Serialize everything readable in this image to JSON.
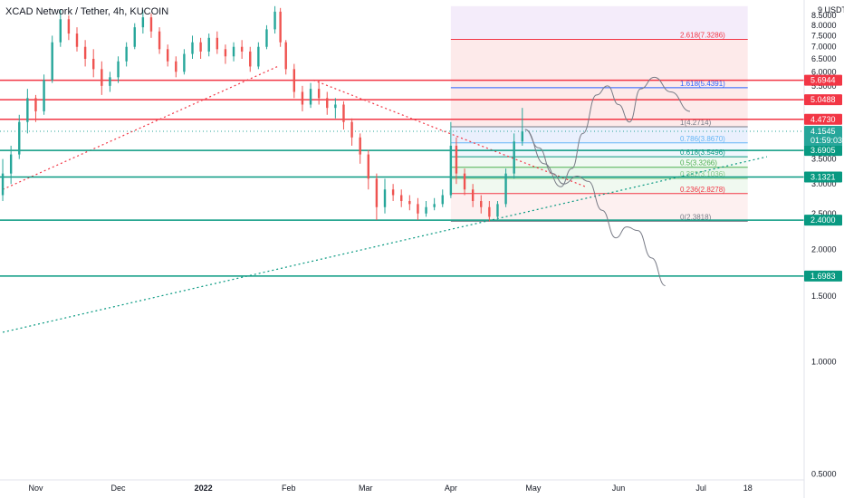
{
  "chart_data": {
    "type": "candlestick",
    "title": "XCAD Network / Tether, 4h, KUCOIN",
    "y_unit_label": "USDT",
    "y_scale": "log",
    "ylim": [
      0.5,
      9
    ],
    "y_ticks": [
      {
        "value": 9.0,
        "label": "9"
      },
      {
        "value": 8.5,
        "label": "8.5000"
      },
      {
        "value": 8.0,
        "label": "8.0000"
      },
      {
        "value": 7.5,
        "label": "7.5000"
      },
      {
        "value": 7.0,
        "label": "7.0000"
      },
      {
        "value": 6.5,
        "label": "6.5000"
      },
      {
        "value": 6.0,
        "label": "6.0000"
      },
      {
        "value": 5.5,
        "label": "5.5000"
      },
      {
        "value": 4.5,
        "label": "4.5000"
      },
      {
        "value": 3.5,
        "label": "3.5000"
      },
      {
        "value": 3.0,
        "label": "3.0000"
      },
      {
        "value": 2.5,
        "label": "2.5000"
      },
      {
        "value": 2.0,
        "label": "2.0000"
      },
      {
        "value": 1.5,
        "label": "1.5000"
      },
      {
        "value": 1.0,
        "label": "1.0000"
      },
      {
        "value": 0.5,
        "label": "0.5000"
      }
    ],
    "x_ticks": [
      {
        "label": "Nov",
        "date": "2021-11-01",
        "bold": false
      },
      {
        "label": "Dec",
        "date": "2021-12-01",
        "bold": false
      },
      {
        "label": "2022",
        "date": "2022-01-01",
        "bold": true
      },
      {
        "label": "Feb",
        "date": "2022-02-01",
        "bold": false
      },
      {
        "label": "Mar",
        "date": "2022-03-01",
        "bold": false
      },
      {
        "label": "Apr",
        "date": "2022-04-01",
        "bold": false
      },
      {
        "label": "May",
        "date": "2022-05-01",
        "bold": false
      },
      {
        "label": "Jun",
        "date": "2022-06-01",
        "bold": false
      },
      {
        "label": "Jul",
        "date": "2022-07-01",
        "bold": false
      },
      {
        "label": "18",
        "date": "2022-07-18",
        "bold": false
      }
    ],
    "current_price": {
      "value": 4.1545,
      "label": "4.1545",
      "countdown": "01:59:03",
      "color": "#26a69a"
    },
    "horizontal_levels": [
      {
        "value": 5.6944,
        "label": "5.6944",
        "color": "#f23645"
      },
      {
        "value": 5.0488,
        "label": "5.0488",
        "color": "#f23645"
      },
      {
        "value": 4.473,
        "label": "4.4730",
        "color": "#f23645"
      },
      {
        "value": 3.6905,
        "label": "3.6905",
        "color": "#089981"
      },
      {
        "value": 3.1321,
        "label": "3.1321",
        "color": "#089981"
      },
      {
        "value": 2.4,
        "label": "2.4000",
        "color": "#089981"
      },
      {
        "value": 1.6983,
        "label": "1.6983",
        "color": "#089981"
      }
    ],
    "fib_extension": {
      "start_date": "2022-04-01",
      "end_date": "2022-07-18",
      "top_value": 9.0,
      "levels": [
        {
          "ratio": "2.618",
          "value": 7.3286,
          "label": "2.618(7.3286)",
          "color": "#f23645"
        },
        {
          "ratio": "1.618",
          "value": 5.4391,
          "label": "1.618(5.4391)",
          "color": "#2962ff"
        },
        {
          "ratio": "1",
          "value": 4.2714,
          "label": "1(4.2714)",
          "color": "#787b86"
        },
        {
          "ratio": "0.786",
          "value": 3.867,
          "label": "0.786(3.8670)",
          "color": "#64b5f6"
        },
        {
          "ratio": "0.618",
          "value": 3.5496,
          "label": "0.618(3.5496)",
          "color": "#089981"
        },
        {
          "ratio": "0.5",
          "value": 3.3266,
          "label": "0.5(3.3266)",
          "color": "#4caf50"
        },
        {
          "ratio": "0.382",
          "value": 3.1036,
          "label": "0.382(3.1036)",
          "color": "#81c784"
        },
        {
          "ratio": "0.236",
          "value": 2.8278,
          "label": "0.236(2.8278)",
          "color": "#f23645"
        },
        {
          "ratio": "0",
          "value": 2.3818,
          "label": "0(2.3818)",
          "color": "#787b86"
        }
      ]
    },
    "trendlines": [
      {
        "style": "dotted",
        "color": "#f23645",
        "from": {
          "date": "2021-10-20",
          "value": 2.9
        },
        "to": {
          "date": "2022-01-28",
          "value": 6.2
        }
      },
      {
        "style": "dotted",
        "color": "#f23645",
        "from": {
          "date": "2022-02-10",
          "value": 5.7
        },
        "to": {
          "date": "2022-05-20",
          "value": 2.95
        }
      },
      {
        "style": "dotted",
        "color": "#089981",
        "from": {
          "date": "2021-10-20",
          "value": 1.2
        },
        "to": {
          "date": "2022-07-25",
          "value": 3.55
        }
      }
    ],
    "projection_paths": [
      {
        "color": "#787b86",
        "points": [
          {
            "date": "2022-04-28",
            "value": 4.2
          },
          {
            "date": "2022-05-05",
            "value": 3.4
          },
          {
            "date": "2022-05-11",
            "value": 2.95
          },
          {
            "date": "2022-05-15",
            "value": 3.3
          },
          {
            "date": "2022-05-19",
            "value": 4.1
          },
          {
            "date": "2022-05-24",
            "value": 5.2
          },
          {
            "date": "2022-05-28",
            "value": 5.5
          },
          {
            "date": "2022-06-01",
            "value": 4.9
          },
          {
            "date": "2022-06-05",
            "value": 4.4
          },
          {
            "date": "2022-06-09",
            "value": 5.4
          },
          {
            "date": "2022-06-14",
            "value": 5.8
          },
          {
            "date": "2022-06-20",
            "value": 5.3
          },
          {
            "date": "2022-06-27",
            "value": 4.7
          }
        ]
      },
      {
        "color": "#787b86",
        "points": [
          {
            "date": "2022-04-28",
            "value": 4.2
          },
          {
            "date": "2022-05-03",
            "value": 3.75
          },
          {
            "date": "2022-05-08",
            "value": 3.2
          },
          {
            "date": "2022-05-12",
            "value": 3.0
          },
          {
            "date": "2022-05-17",
            "value": 3.15
          },
          {
            "date": "2022-05-21",
            "value": 3.05
          },
          {
            "date": "2022-05-26",
            "value": 2.55
          },
          {
            "date": "2022-05-31",
            "value": 2.15
          },
          {
            "date": "2022-06-04",
            "value": 2.3
          },
          {
            "date": "2022-06-08",
            "value": 2.25
          },
          {
            "date": "2022-06-13",
            "value": 1.9
          },
          {
            "date": "2022-06-18",
            "value": 1.6
          }
        ]
      }
    ],
    "candles": [
      {
        "date": "2021-10-20",
        "o": 2.8,
        "h": 3.5,
        "l": 2.7,
        "c": 3.2
      },
      {
        "date": "2021-10-23",
        "o": 3.2,
        "h": 3.8,
        "l": 3.0,
        "c": 3.6
      },
      {
        "date": "2021-10-26",
        "o": 3.6,
        "h": 4.6,
        "l": 3.5,
        "c": 4.4
      },
      {
        "date": "2021-10-29",
        "o": 4.4,
        "h": 5.4,
        "l": 4.1,
        "c": 5.1
      },
      {
        "date": "2021-11-01",
        "o": 5.1,
        "h": 5.2,
        "l": 4.4,
        "c": 4.7
      },
      {
        "date": "2021-11-04",
        "o": 4.7,
        "h": 5.9,
        "l": 4.6,
        "c": 5.7
      },
      {
        "date": "2021-11-07",
        "o": 5.7,
        "h": 7.5,
        "l": 5.6,
        "c": 7.2
      },
      {
        "date": "2021-11-10",
        "o": 7.2,
        "h": 8.8,
        "l": 7.0,
        "c": 8.3
      },
      {
        "date": "2021-11-13",
        "o": 8.3,
        "h": 8.5,
        "l": 7.3,
        "c": 7.6
      },
      {
        "date": "2021-11-16",
        "o": 7.6,
        "h": 7.9,
        "l": 6.8,
        "c": 7.0
      },
      {
        "date": "2021-11-19",
        "o": 7.0,
        "h": 7.3,
        "l": 6.2,
        "c": 6.5
      },
      {
        "date": "2021-11-22",
        "o": 6.5,
        "h": 6.9,
        "l": 5.8,
        "c": 6.1
      },
      {
        "date": "2021-11-25",
        "o": 6.1,
        "h": 6.4,
        "l": 5.2,
        "c": 5.5
      },
      {
        "date": "2021-11-28",
        "o": 5.5,
        "h": 6.0,
        "l": 5.3,
        "c": 5.8
      },
      {
        "date": "2021-12-01",
        "o": 5.8,
        "h": 6.6,
        "l": 5.6,
        "c": 6.4
      },
      {
        "date": "2021-12-04",
        "o": 6.4,
        "h": 7.2,
        "l": 6.2,
        "c": 7.0
      },
      {
        "date": "2021-12-07",
        "o": 7.0,
        "h": 8.1,
        "l": 6.9,
        "c": 7.9
      },
      {
        "date": "2021-12-10",
        "o": 7.9,
        "h": 8.8,
        "l": 7.6,
        "c": 8.4
      },
      {
        "date": "2021-12-13",
        "o": 8.4,
        "h": 8.6,
        "l": 7.4,
        "c": 7.7
      },
      {
        "date": "2021-12-16",
        "o": 7.7,
        "h": 7.9,
        "l": 6.7,
        "c": 6.9
      },
      {
        "date": "2021-12-19",
        "o": 6.9,
        "h": 7.1,
        "l": 6.2,
        "c": 6.4
      },
      {
        "date": "2021-12-22",
        "o": 6.4,
        "h": 6.6,
        "l": 5.8,
        "c": 6.0
      },
      {
        "date": "2021-12-25",
        "o": 6.0,
        "h": 6.9,
        "l": 5.9,
        "c": 6.7
      },
      {
        "date": "2021-12-28",
        "o": 6.7,
        "h": 7.5,
        "l": 6.5,
        "c": 7.2
      },
      {
        "date": "2021-12-31",
        "o": 7.2,
        "h": 7.4,
        "l": 6.5,
        "c": 6.8
      },
      {
        "date": "2022-01-03",
        "o": 6.8,
        "h": 7.6,
        "l": 6.6,
        "c": 7.4
      },
      {
        "date": "2022-01-06",
        "o": 7.4,
        "h": 7.7,
        "l": 6.7,
        "c": 6.9
      },
      {
        "date": "2022-01-09",
        "o": 6.9,
        "h": 7.1,
        "l": 6.3,
        "c": 6.6
      },
      {
        "date": "2022-01-12",
        "o": 6.6,
        "h": 7.2,
        "l": 6.4,
        "c": 7.0
      },
      {
        "date": "2022-01-15",
        "o": 7.0,
        "h": 7.3,
        "l": 6.5,
        "c": 6.8
      },
      {
        "date": "2022-01-18",
        "o": 6.8,
        "h": 7.0,
        "l": 6.0,
        "c": 6.2
      },
      {
        "date": "2022-01-21",
        "o": 6.2,
        "h": 7.2,
        "l": 6.1,
        "c": 7.0
      },
      {
        "date": "2022-01-24",
        "o": 7.0,
        "h": 8.0,
        "l": 6.9,
        "c": 7.8
      },
      {
        "date": "2022-01-27",
        "o": 7.8,
        "h": 9.0,
        "l": 7.6,
        "c": 8.7
      },
      {
        "date": "2022-01-29",
        "o": 8.7,
        "h": 8.9,
        "l": 7.0,
        "c": 7.2
      },
      {
        "date": "2022-01-31",
        "o": 7.2,
        "h": 7.3,
        "l": 5.9,
        "c": 6.1
      },
      {
        "date": "2022-02-03",
        "o": 6.1,
        "h": 6.3,
        "l": 5.1,
        "c": 5.3
      },
      {
        "date": "2022-02-06",
        "o": 5.3,
        "h": 5.5,
        "l": 4.7,
        "c": 4.9
      },
      {
        "date": "2022-02-09",
        "o": 4.9,
        "h": 5.6,
        "l": 4.8,
        "c": 5.4
      },
      {
        "date": "2022-02-12",
        "o": 5.4,
        "h": 5.7,
        "l": 4.9,
        "c": 5.1
      },
      {
        "date": "2022-02-15",
        "o": 5.1,
        "h": 5.3,
        "l": 4.6,
        "c": 4.8
      },
      {
        "date": "2022-02-18",
        "o": 4.8,
        "h": 5.1,
        "l": 4.5,
        "c": 4.9
      },
      {
        "date": "2022-02-21",
        "o": 4.9,
        "h": 5.0,
        "l": 4.2,
        "c": 4.4
      },
      {
        "date": "2022-02-24",
        "o": 4.4,
        "h": 4.5,
        "l": 3.8,
        "c": 4.0
      },
      {
        "date": "2022-02-27",
        "o": 4.0,
        "h": 4.1,
        "l": 3.4,
        "c": 3.6
      },
      {
        "date": "2022-03-02",
        "o": 3.6,
        "h": 3.7,
        "l": 2.9,
        "c": 3.1
      },
      {
        "date": "2022-03-05",
        "o": 3.1,
        "h": 3.2,
        "l": 2.4,
        "c": 2.6
      },
      {
        "date": "2022-03-08",
        "o": 2.6,
        "h": 3.1,
        "l": 2.5,
        "c": 2.9
      },
      {
        "date": "2022-03-11",
        "o": 2.9,
        "h": 3.0,
        "l": 2.7,
        "c": 2.8
      },
      {
        "date": "2022-03-14",
        "o": 2.8,
        "h": 2.9,
        "l": 2.6,
        "c": 2.7
      },
      {
        "date": "2022-03-17",
        "o": 2.7,
        "h": 2.8,
        "l": 2.55,
        "c": 2.65
      },
      {
        "date": "2022-03-20",
        "o": 2.65,
        "h": 2.75,
        "l": 2.4,
        "c": 2.5
      },
      {
        "date": "2022-03-23",
        "o": 2.5,
        "h": 2.7,
        "l": 2.45,
        "c": 2.6
      },
      {
        "date": "2022-03-26",
        "o": 2.6,
        "h": 2.75,
        "l": 2.55,
        "c": 2.65
      },
      {
        "date": "2022-03-29",
        "o": 2.65,
        "h": 2.9,
        "l": 2.6,
        "c": 2.8
      },
      {
        "date": "2022-04-01",
        "o": 2.8,
        "h": 4.4,
        "l": 2.75,
        "c": 3.8
      },
      {
        "date": "2022-04-03",
        "o": 3.8,
        "h": 4.0,
        "l": 3.0,
        "c": 3.2
      },
      {
        "date": "2022-04-06",
        "o": 3.2,
        "h": 3.3,
        "l": 2.8,
        "c": 2.9
      },
      {
        "date": "2022-04-09",
        "o": 2.9,
        "h": 3.0,
        "l": 2.6,
        "c": 2.7
      },
      {
        "date": "2022-04-12",
        "o": 2.7,
        "h": 2.8,
        "l": 2.5,
        "c": 2.6
      },
      {
        "date": "2022-04-15",
        "o": 2.6,
        "h": 2.7,
        "l": 2.38,
        "c": 2.45
      },
      {
        "date": "2022-04-18",
        "o": 2.45,
        "h": 2.7,
        "l": 2.4,
        "c": 2.65
      },
      {
        "date": "2022-04-21",
        "o": 2.65,
        "h": 3.3,
        "l": 2.6,
        "c": 3.2
      },
      {
        "date": "2022-04-24",
        "o": 3.2,
        "h": 4.1,
        "l": 3.1,
        "c": 3.9
      },
      {
        "date": "2022-04-27",
        "o": 3.9,
        "h": 4.8,
        "l": 3.8,
        "c": 4.15
      }
    ]
  }
}
